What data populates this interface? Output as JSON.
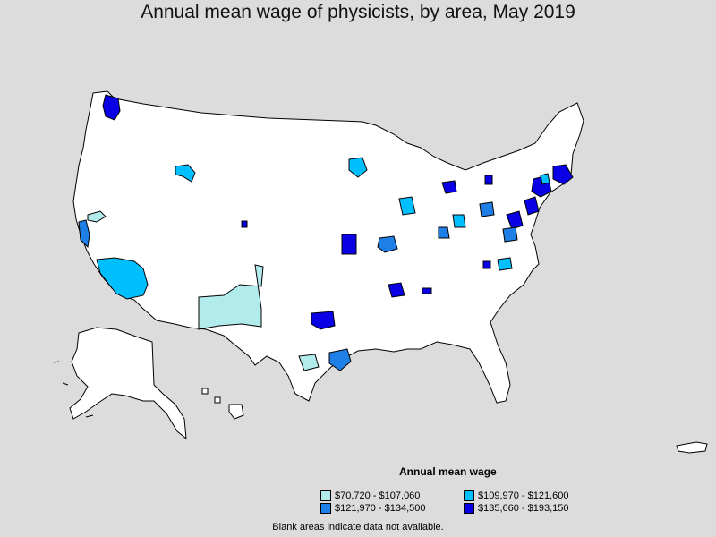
{
  "title": "Annual mean wage of physicists, by area, May 2019",
  "legend": {
    "title": "Annual mean wage",
    "items": [
      {
        "label": "$70,720 - $107,060",
        "color": "#b2ebeb"
      },
      {
        "label": "$109,970 - $121,600",
        "color": "#00bfff"
      },
      {
        "label": "$121,970 - $134,500",
        "color": "#1e7fe6"
      },
      {
        "label": "$135,660 - $193,150",
        "color": "#0a00e6"
      }
    ]
  },
  "note": "Blank areas indicate data not available.",
  "colors": {
    "background": "#dcdcdc",
    "land": "#ffffff",
    "border": "#000000"
  }
}
